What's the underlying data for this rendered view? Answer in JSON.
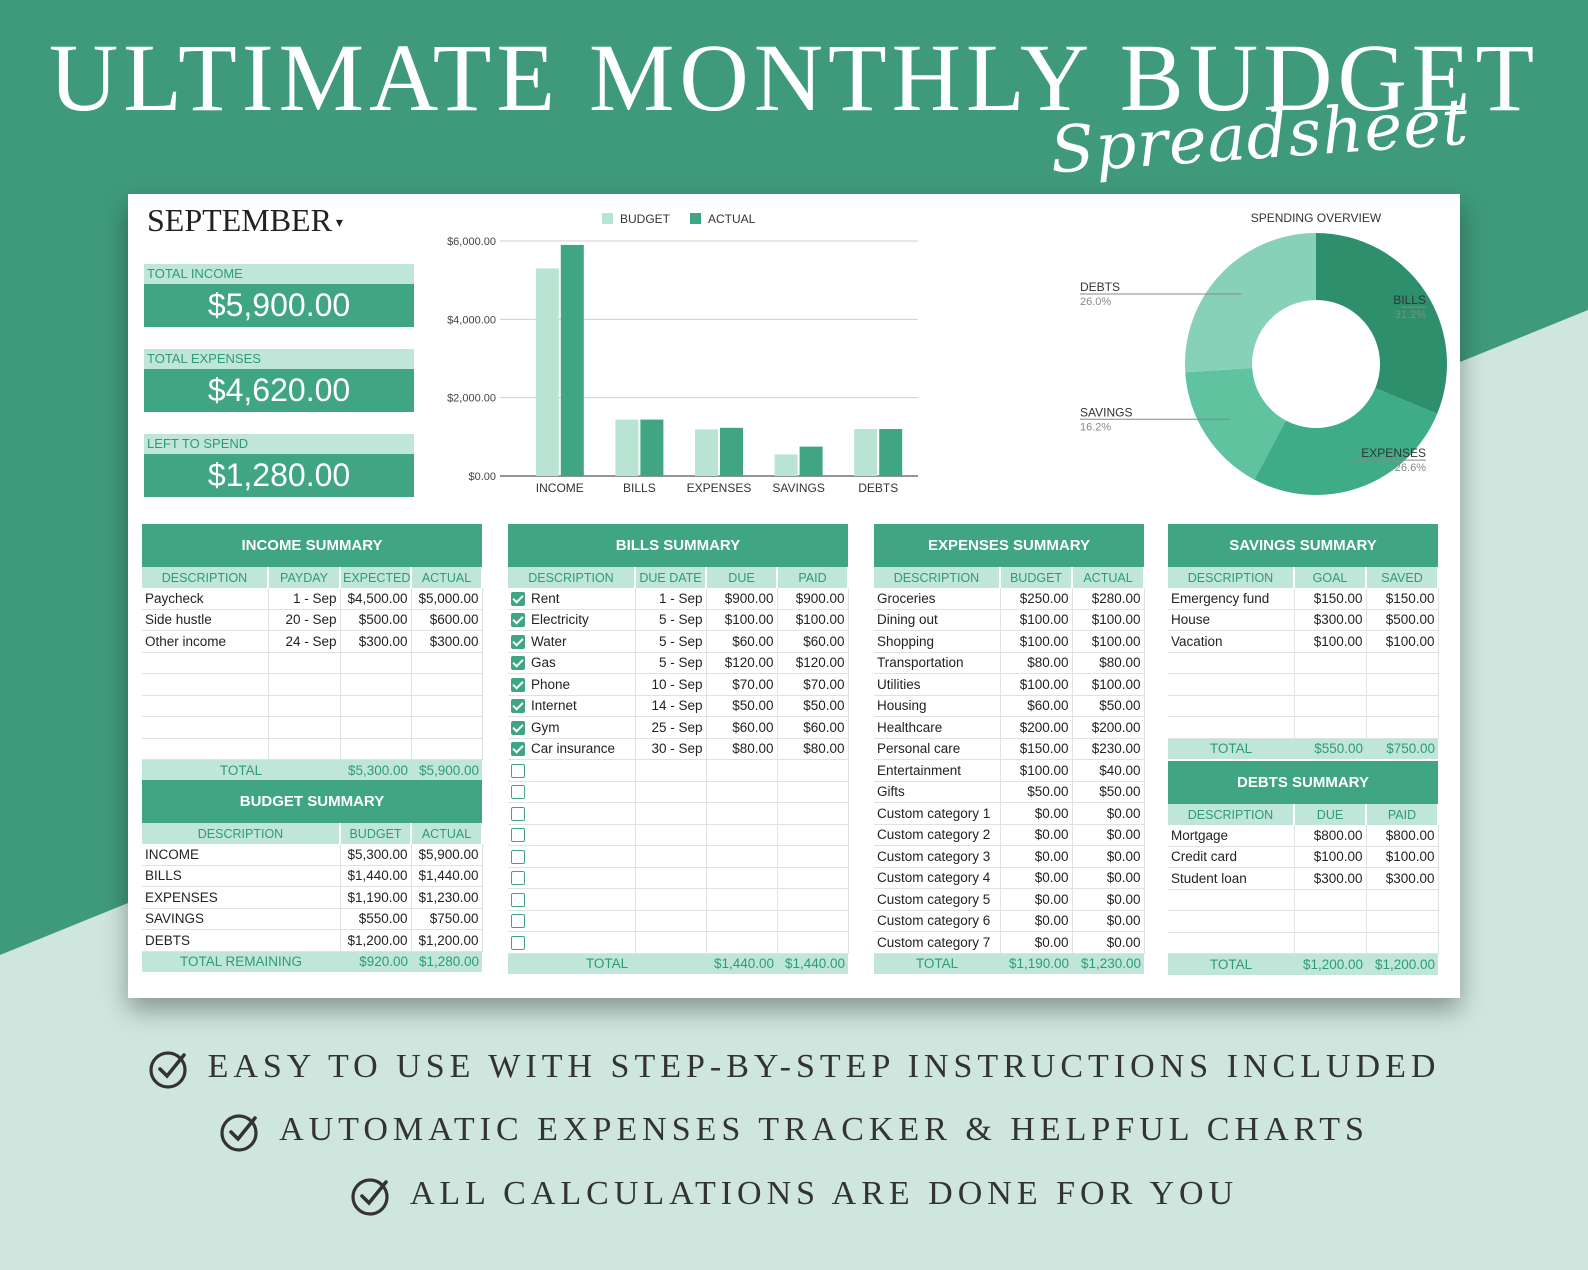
{
  "header": {
    "title": "ULTIMATE MONTHLY BUDGET",
    "script": "Spreadsheet"
  },
  "month": "SEPTEMBER",
  "kpis": [
    {
      "label": "TOTAL INCOME",
      "value": "$5,900.00"
    },
    {
      "label": "TOTAL EXPENSES",
      "value": "$4,620.00"
    },
    {
      "label": "LEFT TO SPEND",
      "value": "$1,280.00"
    }
  ],
  "chart_data": [
    {
      "type": "bar",
      "categories": [
        "INCOME",
        "BILLS",
        "EXPENSES",
        "SAVINGS",
        "DEBTS"
      ],
      "series": [
        {
          "name": "BUDGET",
          "values": [
            5300,
            1440,
            1190,
            550,
            1200
          ],
          "color": "#b9e4d4"
        },
        {
          "name": "ACTUAL",
          "values": [
            5900,
            1440,
            1230,
            750,
            1200
          ],
          "color": "#3fa583"
        }
      ],
      "ylim": [
        0,
        6000
      ],
      "y_ticks": [
        "$0.00",
        "$2,000.00",
        "$4,000.00",
        "$6,000.00"
      ],
      "legend": "top",
      "grid": true
    },
    {
      "type": "pie",
      "title": "SPENDING OVERVIEW",
      "labels": [
        "BILLS",
        "EXPENSES",
        "SAVINGS",
        "DEBTS"
      ],
      "values": [
        31.2,
        26.6,
        16.2,
        26.0
      ],
      "pct_labels": [
        "31.2%",
        "26.6%",
        "16.2%",
        "26.0%"
      ],
      "colors": [
        "#2e8f6c",
        "#3fac88",
        "#5fc3a0",
        "#86d1b7"
      ],
      "donut": true
    }
  ],
  "income": {
    "title": "INCOME SUMMARY",
    "headers": [
      "DESCRIPTION",
      "PAYDAY",
      "EXPECTED",
      "ACTUAL"
    ],
    "rows": [
      [
        "Paycheck",
        "1 - Sep",
        "$4,500.00",
        "$5,000.00"
      ],
      [
        "Side hustle",
        "20 - Sep",
        "$500.00",
        "$600.00"
      ],
      [
        "Other income",
        "24 - Sep",
        "$300.00",
        "$300.00"
      ]
    ],
    "total_label": "TOTAL",
    "total": [
      "$5,300.00",
      "$5,900.00"
    ]
  },
  "budget": {
    "title": "BUDGET SUMMARY",
    "headers": [
      "DESCRIPTION",
      "BUDGET",
      "ACTUAL"
    ],
    "rows": [
      [
        "INCOME",
        "$5,300.00",
        "$5,900.00"
      ],
      [
        "BILLS",
        "$1,440.00",
        "$1,440.00"
      ],
      [
        "EXPENSES",
        "$1,190.00",
        "$1,230.00"
      ],
      [
        "SAVINGS",
        "$550.00",
        "$750.00"
      ],
      [
        "DEBTS",
        "$1,200.00",
        "$1,200.00"
      ]
    ],
    "total_label": "TOTAL REMAINING",
    "total": [
      "$920.00",
      "$1,280.00"
    ]
  },
  "bills": {
    "title": "BILLS SUMMARY",
    "headers": [
      "DESCRIPTION",
      "DUE DATE",
      "DUE",
      "PAID"
    ],
    "rows": [
      [
        "Rent",
        "1 - Sep",
        "$900.00",
        "$900.00"
      ],
      [
        "Electricity",
        "5 - Sep",
        "$100.00",
        "$100.00"
      ],
      [
        "Water",
        "5 - Sep",
        "$60.00",
        "$60.00"
      ],
      [
        "Gas",
        "5 - Sep",
        "$120.00",
        "$120.00"
      ],
      [
        "Phone",
        "10 - Sep",
        "$70.00",
        "$70.00"
      ],
      [
        "Internet",
        "14 - Sep",
        "$50.00",
        "$50.00"
      ],
      [
        "Gym",
        "25 - Sep",
        "$60.00",
        "$60.00"
      ],
      [
        "Car insurance",
        "30 - Sep",
        "$80.00",
        "$80.00"
      ]
    ],
    "checked": [
      true,
      true,
      true,
      true,
      true,
      true,
      true,
      true,
      false,
      false,
      false,
      false,
      false,
      false,
      false,
      false,
      false
    ],
    "total_label": "TOTAL",
    "total": [
      "$1,440.00",
      "$1,440.00"
    ]
  },
  "expenses": {
    "title": "EXPENSES SUMMARY",
    "headers": [
      "DESCRIPTION",
      "BUDGET",
      "ACTUAL"
    ],
    "rows": [
      [
        "Groceries",
        "$250.00",
        "$280.00"
      ],
      [
        "Dining out",
        "$100.00",
        "$100.00"
      ],
      [
        "Shopping",
        "$100.00",
        "$100.00"
      ],
      [
        "Transportation",
        "$80.00",
        "$80.00"
      ],
      [
        "Utilities",
        "$100.00",
        "$100.00"
      ],
      [
        "Housing",
        "$60.00",
        "$50.00"
      ],
      [
        "Healthcare",
        "$200.00",
        "$200.00"
      ],
      [
        "Personal care",
        "$150.00",
        "$230.00"
      ],
      [
        "Entertainment",
        "$100.00",
        "$40.00"
      ],
      [
        "Gifts",
        "$50.00",
        "$50.00"
      ],
      [
        "Custom category 1",
        "$0.00",
        "$0.00"
      ],
      [
        "Custom category 2",
        "$0.00",
        "$0.00"
      ],
      [
        "Custom category 3",
        "$0.00",
        "$0.00"
      ],
      [
        "Custom category 4",
        "$0.00",
        "$0.00"
      ],
      [
        "Custom category 5",
        "$0.00",
        "$0.00"
      ],
      [
        "Custom category 6",
        "$0.00",
        "$0.00"
      ],
      [
        "Custom category 7",
        "$0.00",
        "$0.00"
      ]
    ],
    "total_label": "TOTAL",
    "total": [
      "$1,190.00",
      "$1,230.00"
    ]
  },
  "savings": {
    "title": "SAVINGS SUMMARY",
    "headers": [
      "DESCRIPTION",
      "GOAL",
      "SAVED"
    ],
    "rows": [
      [
        "Emergency fund",
        "$150.00",
        "$150.00"
      ],
      [
        "House",
        "$300.00",
        "$500.00"
      ],
      [
        "Vacation",
        "$100.00",
        "$100.00"
      ]
    ],
    "total_label": "TOTAL",
    "total": [
      "$550.00",
      "$750.00"
    ]
  },
  "debts": {
    "title": "DEBTS SUMMARY",
    "headers": [
      "DESCRIPTION",
      "DUE",
      "PAID"
    ],
    "rows": [
      [
        "Mortgage",
        "$800.00",
        "$800.00"
      ],
      [
        "Credit card",
        "$100.00",
        "$100.00"
      ],
      [
        "Student loan",
        "$300.00",
        "$300.00"
      ]
    ],
    "total_label": "TOTAL",
    "total": [
      "$1,200.00",
      "$1,200.00"
    ]
  },
  "features": [
    "EASY TO USE WITH STEP-BY-STEP INSTRUCTIONS INCLUDED",
    "AUTOMATIC EXPENSES TRACKER & HELPFUL CHARTS",
    "ALL CALCULATIONS ARE DONE FOR YOU"
  ],
  "colors": {
    "brand_dark": "#3f9a7c",
    "brand": "#3fa583",
    "brand_light": "#bfe6d8",
    "background_light": "#cfe6df"
  }
}
